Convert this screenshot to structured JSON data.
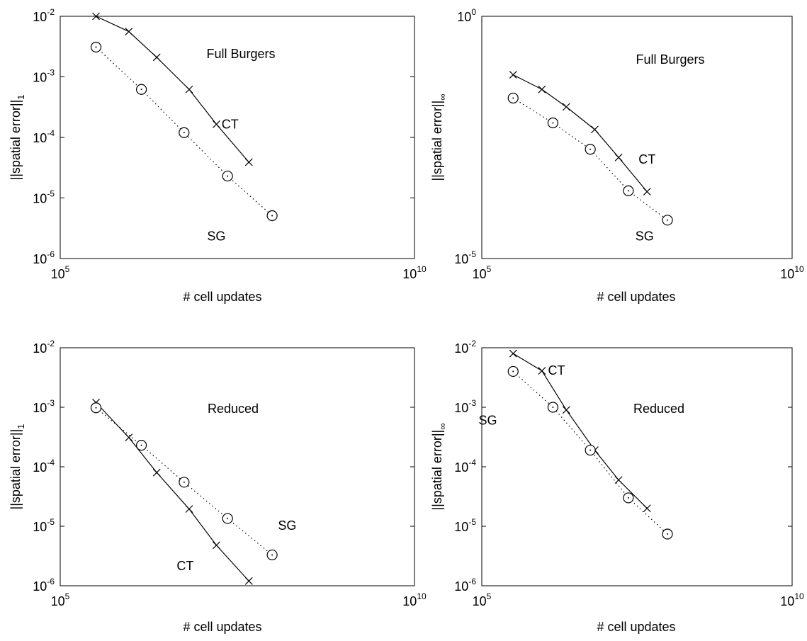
{
  "chart_data": [
    {
      "type": "line",
      "title": "",
      "annotation": "Full Burgers",
      "xlabel": "# cell updates",
      "ylabel": "||spatial error||",
      "ylabel_sub": "1",
      "xscale": "log",
      "yscale": "log",
      "xlim": [
        100000.0,
        10000000000.0
      ],
      "ylim": [
        1e-06,
        0.01
      ],
      "xticks": [
        {
          "base": "10",
          "exp": "5"
        },
        {
          "base": "10",
          "exp": "10"
        }
      ],
      "yticks": [
        {
          "base": "10",
          "exp": "-2"
        },
        {
          "base": "10",
          "exp": "-3"
        },
        {
          "base": "10",
          "exp": "-4"
        },
        {
          "base": "10",
          "exp": "-5"
        },
        {
          "base": "10",
          "exp": "-6"
        }
      ],
      "series": [
        {
          "name": "CT",
          "marker": "x",
          "line": "solid",
          "x": [
            320000.0,
            930000.0,
            2300000.0,
            6600000.0,
            16000000.0,
            46000000.0
          ],
          "y": [
            0.01,
            0.0056,
            0.0021,
            0.00062,
            0.000165,
            3.9e-05
          ]
        },
        {
          "name": "SG",
          "marker": "o",
          "line": "dotted",
          "x": [
            320000.0,
            1400000.0,
            5600000.0,
            23000000.0,
            98000000.0
          ],
          "y": [
            0.0031,
            0.00062,
            0.00012,
            2.3e-05,
            5.1e-06
          ]
        }
      ],
      "labels": [
        {
          "text": "CT",
          "x": 25000000.0,
          "y": 0.00017
        },
        {
          "text": "SG",
          "x": 16000000.0,
          "y": 2.4e-06
        }
      ]
    },
    {
      "type": "line",
      "title": "",
      "annotation": "Full Burgers",
      "xlabel": "# cell updates",
      "ylabel": "||spatial error||",
      "ylabel_sub": "∞",
      "xscale": "log",
      "yscale": "log",
      "xlim": [
        100000.0,
        10000000000.0
      ],
      "ylim": [
        1e-05,
        1
      ],
      "xticks": [
        {
          "base": "10",
          "exp": "5"
        },
        {
          "base": "10",
          "exp": "10"
        }
      ],
      "yticks": [
        {
          "base": "10",
          "exp": "0"
        },
        {
          "base": "10",
          "exp": "-5"
        }
      ],
      "series": [
        {
          "name": "CT",
          "marker": "x",
          "line": "solid",
          "x": [
            320000.0,
            930000.0,
            2300000.0,
            6600000.0,
            16000000.0,
            46000000.0
          ],
          "y": [
            0.062,
            0.031,
            0.0135,
            0.0046,
            0.00122,
            0.00024
          ]
        },
        {
          "name": "SG",
          "marker": "o",
          "line": "dotted",
          "x": [
            320000.0,
            1400000.0,
            5600000.0,
            23000000.0,
            98000000.0
          ],
          "y": [
            0.0205,
            0.0063,
            0.0018,
            0.00025,
            6.2e-05
          ]
        }
      ],
      "labels": [
        {
          "text": "CT",
          "x": 46000000.0,
          "y": 0.00115
        },
        {
          "text": "SG",
          "x": 42000000.0,
          "y": 3e-05
        }
      ]
    },
    {
      "type": "line",
      "title": "",
      "annotation": "Reduced",
      "xlabel": "# cell updates",
      "ylabel": "||spatial error||",
      "ylabel_sub": "1",
      "xscale": "log",
      "yscale": "log",
      "xlim": [
        100000.0,
        10000000000.0
      ],
      "ylim": [
        1e-06,
        0.01
      ],
      "xticks": [
        {
          "base": "10",
          "exp": "5"
        },
        {
          "base": "10",
          "exp": "10"
        }
      ],
      "yticks": [
        {
          "base": "10",
          "exp": "-2"
        },
        {
          "base": "10",
          "exp": "-3"
        },
        {
          "base": "10",
          "exp": "-4"
        },
        {
          "base": "10",
          "exp": "-5"
        },
        {
          "base": "10",
          "exp": "-6"
        }
      ],
      "series": [
        {
          "name": "CT",
          "marker": "x",
          "line": "solid",
          "x": [
            320000.0,
            930000.0,
            2300000.0,
            6600000.0,
            16000000.0,
            46000000.0
          ],
          "y": [
            0.0012,
            0.00031,
            8e-05,
            1.95e-05,
            4.8e-06,
            1.2e-06
          ]
        },
        {
          "name": "SG",
          "marker": "o",
          "line": "dotted",
          "x": [
            320000.0,
            1400000.0,
            5600000.0,
            23000000.0,
            98000000.0
          ],
          "y": [
            0.00098,
            0.00023,
            5.5e-05,
            1.35e-05,
            3.3e-06
          ]
        }
      ],
      "labels": [
        {
          "text": "CT",
          "x": 5800000.0,
          "y": 2.2e-06
        },
        {
          "text": "SG",
          "x": 160000000.0,
          "y": 1.05e-05
        }
      ]
    },
    {
      "type": "line",
      "title": "",
      "annotation": "Reduced",
      "xlabel": "# cell updates",
      "ylabel": "||spatial error||",
      "ylabel_sub": "∞",
      "xscale": "log",
      "yscale": "log",
      "xlim": [
        100000.0,
        10000000000.0
      ],
      "ylim": [
        1e-06,
        0.01
      ],
      "xticks": [
        {
          "base": "10",
          "exp": "5"
        },
        {
          "base": "10",
          "exp": "10"
        }
      ],
      "yticks": [
        {
          "base": "10",
          "exp": "-2"
        },
        {
          "base": "10",
          "exp": "-3"
        },
        {
          "base": "10",
          "exp": "-4"
        },
        {
          "base": "10",
          "exp": "-5"
        },
        {
          "base": "10",
          "exp": "-6"
        }
      ],
      "series": [
        {
          "name": "CT",
          "marker": "x",
          "line": "solid",
          "x": [
            320000.0,
            930000.0,
            2300000.0,
            6600000.0,
            16000000.0,
            46000000.0
          ],
          "y": [
            0.008,
            0.0041,
            0.0009,
            0.00019,
            6e-05,
            2e-05
          ]
        },
        {
          "name": "SG",
          "marker": "o",
          "line": "dotted",
          "x": [
            320000.0,
            1400000.0,
            5600000.0,
            23000000.0,
            98000000.0
          ],
          "y": [
            0.004,
            0.001,
            0.00019,
            3e-05,
            7.4e-06
          ]
        }
      ],
      "labels": [
        {
          "text": "CT",
          "x": 1600000.0,
          "y": 0.0043
        },
        {
          "text": "SG",
          "x": 125000.0,
          "y": 0.00062
        }
      ]
    }
  ]
}
